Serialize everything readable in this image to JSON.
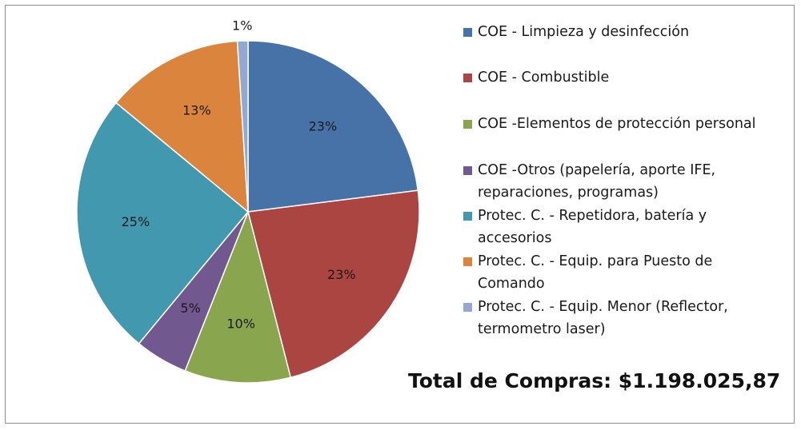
{
  "chart_data": {
    "type": "pie",
    "slices": [
      {
        "label": "COE - Limpieza y desinfección",
        "value": 23,
        "display": "23%",
        "color": "#4672a8"
      },
      {
        "label": "COE - Combustible",
        "value": 23,
        "display": "23%",
        "color": "#ab4542"
      },
      {
        "label": "COE -Elementos de protección personal",
        "value": 10,
        "display": "10%",
        "color": "#89a54e"
      },
      {
        "label": "COE -Otros (papelería, aporte IFE, reparaciones, programas)",
        "value": 5,
        "display": "5%",
        "color": "#71588f"
      },
      {
        "label": "Protec. C. - Repetidora, batería y accesorios",
        "value": 25,
        "display": "25%",
        "color": "#4298af"
      },
      {
        "label": "Protec. C. - Equip. para Puesto de Comando",
        "value": 13,
        "display": "13%",
        "color": "#db843d"
      },
      {
        "label": "Protec. C. - Equip. Menor (Reflector, termometro laser)",
        "value": 1,
        "display": "1%",
        "color": "#93a9cf"
      }
    ],
    "legend_position": "right"
  },
  "total_text": "Total de Compras: $1.198.025,87"
}
